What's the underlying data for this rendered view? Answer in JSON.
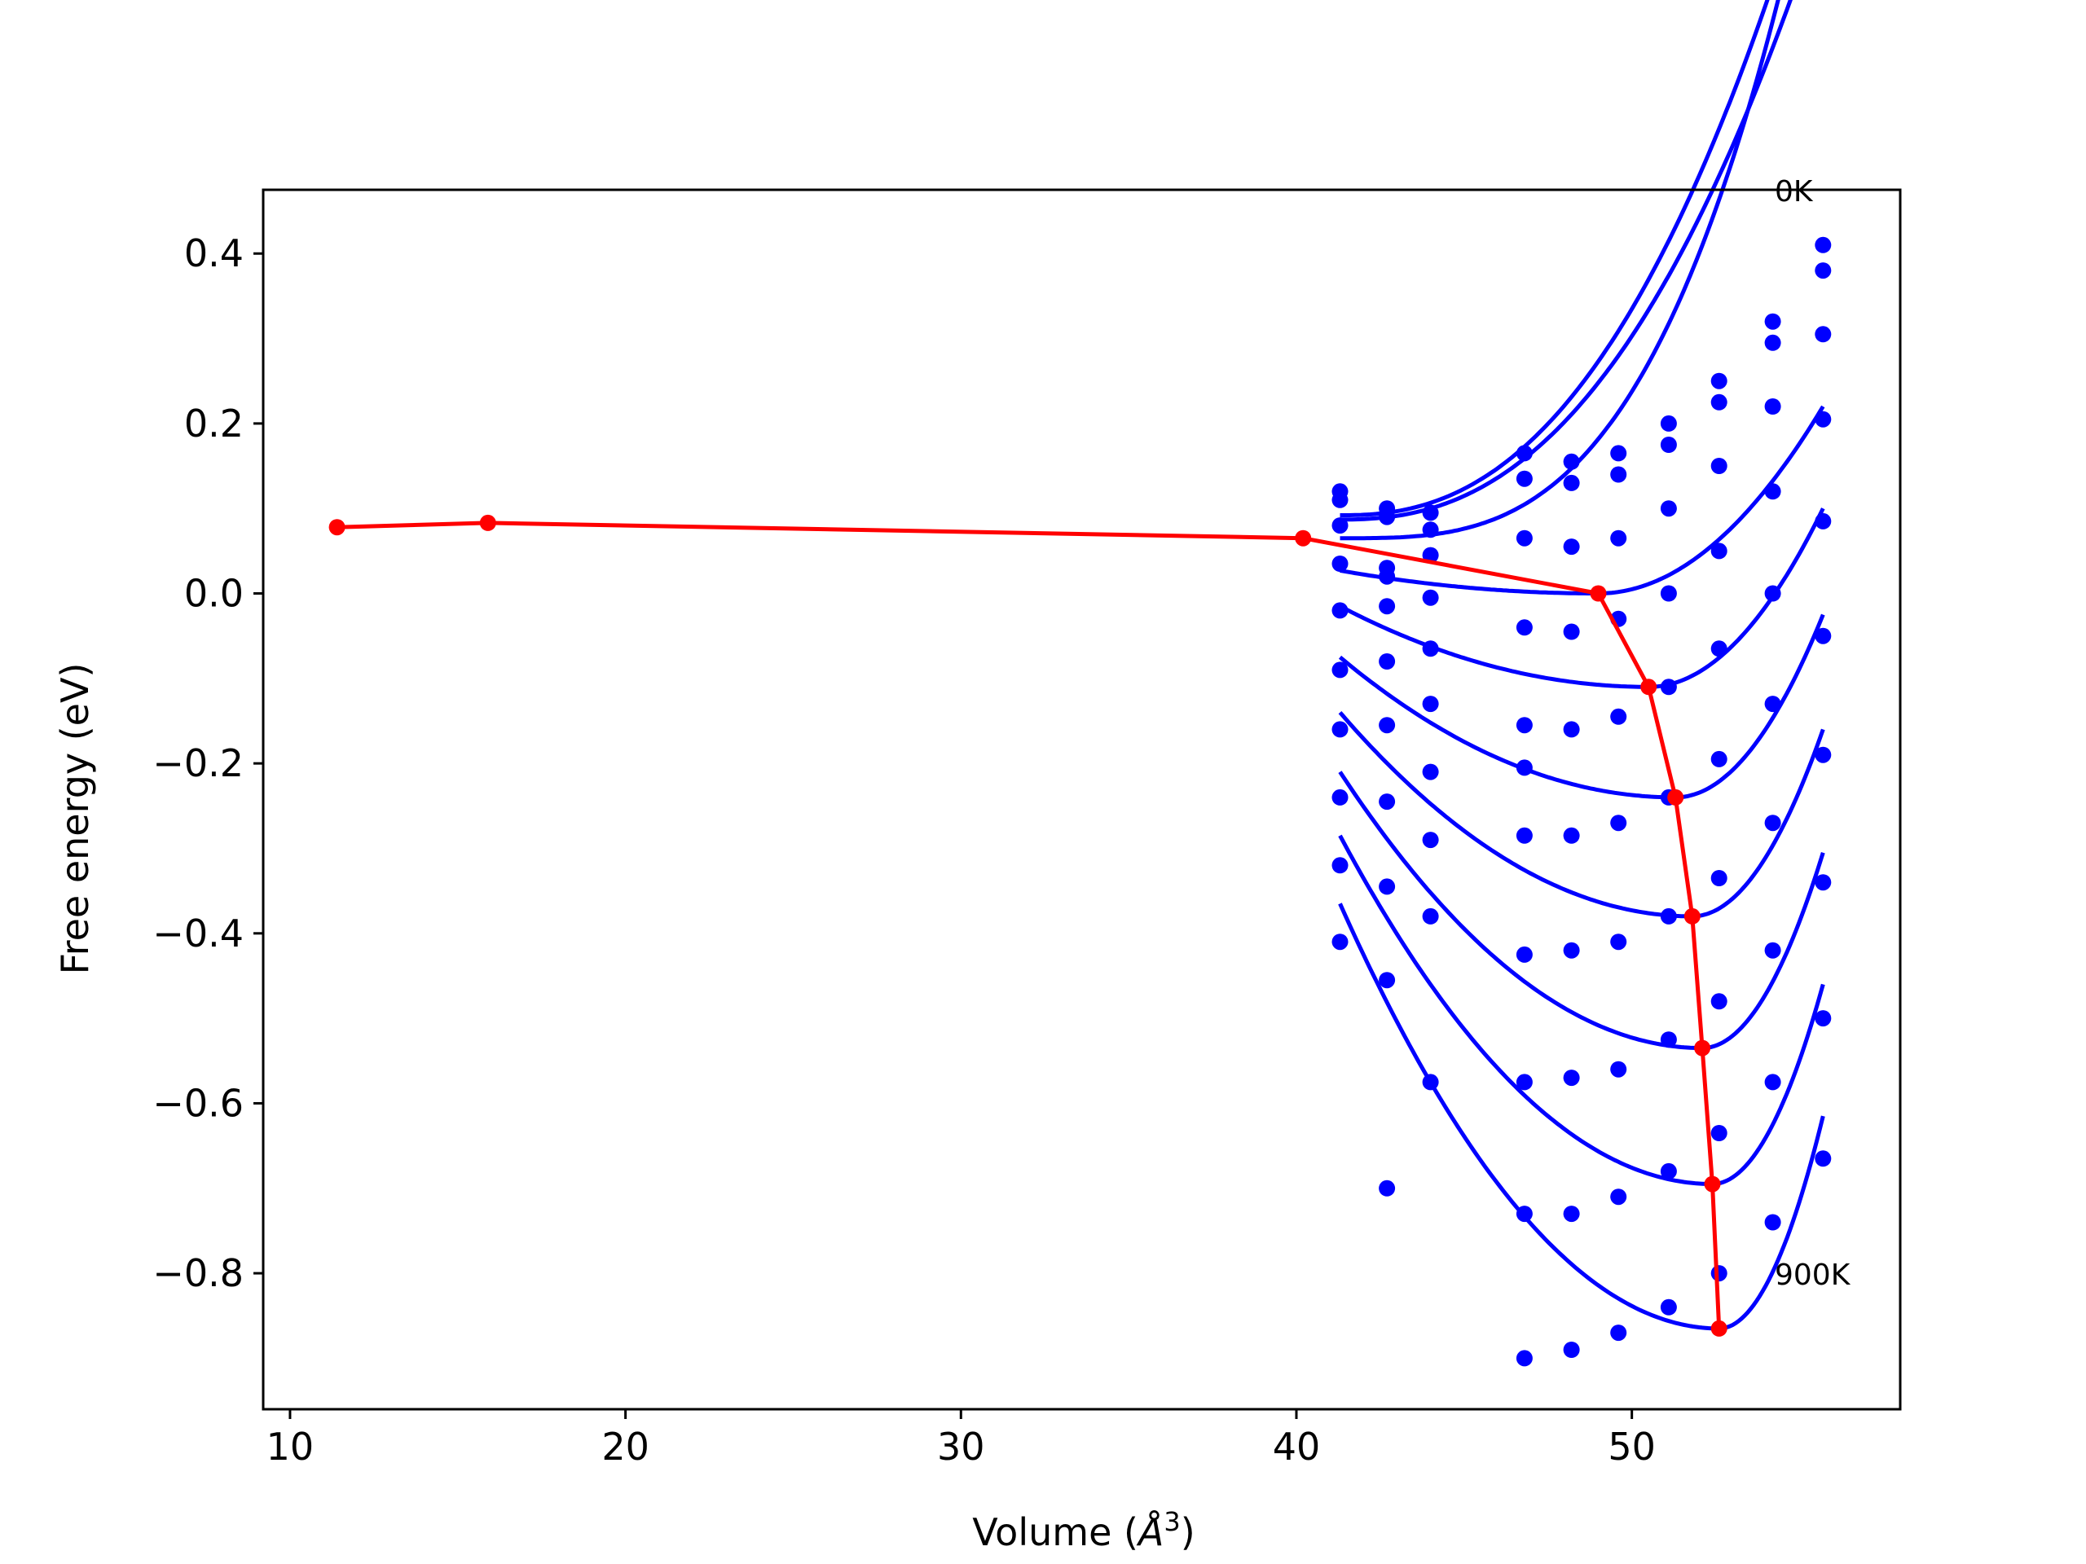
{
  "chart_data": {
    "type": "scatter",
    "title": "",
    "xlabel_prefix": "Volume (",
    "xlabel_unit": "Å",
    "xlabel_sup": "3",
    "xlabel_suffix": ")",
    "ylabel": "Free energy (eV)",
    "xlim": [
      9.2,
      58.0
    ],
    "ylim": [
      -0.96,
      0.475
    ],
    "x_ticks": [
      10,
      20,
      30,
      40,
      50
    ],
    "x_tick_labels": [
      "10",
      "20",
      "30",
      "40",
      "50"
    ],
    "y_ticks": [
      0.4,
      0.2,
      0.0,
      -0.2,
      -0.4,
      -0.6,
      -0.8
    ],
    "y_tick_labels": [
      "0.4",
      "0.2",
      "0.0",
      "−0.2",
      "−0.4",
      "−0.6",
      "−0.8"
    ],
    "grid": false,
    "annotations": [
      {
        "text": "0K",
        "x": 54.2,
        "y": 0.46
      },
      {
        "text": "900K",
        "x": 54.2,
        "y": -0.815
      }
    ],
    "colors": {
      "fit_curves": "#0000ff",
      "points": "#0000ff",
      "minimum_path": "#ff0000"
    },
    "x_points": [
      41.3,
      42.7,
      44.0,
      46.8,
      48.2,
      49.6,
      51.1,
      52.6,
      54.2,
      55.7
    ],
    "temperature_series": [
      {
        "values": [
          0.12,
          0.1,
          0.095,
          0.135,
          0.155,
          0.165,
          0.2,
          0.25,
          0.32,
          0.41
        ],
        "fit": {
          "vmin": 41.3,
          "fmin": 0.092,
          "a": 0.00135,
          "p": 2.4
        }
      },
      {
        "values": [
          0.11,
          0.09,
          0.075,
          0.165,
          0.13,
          0.14,
          0.175,
          0.225,
          0.295,
          0.38
        ],
        "fit": {
          "vmin": 41.3,
          "fmin": 0.087,
          "a": 0.0012,
          "p": 2.4
        }
      },
      {
        "values": [
          0.08,
          0.03,
          0.045,
          0.065,
          0.055,
          0.065,
          0.1,
          0.15,
          0.22,
          0.305
        ],
        "fit": {
          "vmin": 41.3,
          "fmin": 0.065,
          "a": 0.00017,
          "p": 3.2
        }
      },
      {
        "values": [
          0.035,
          0.02,
          -0.005,
          -0.04,
          -0.045,
          -0.03,
          0.0,
          0.05,
          0.12,
          0.205
        ]
      },
      {
        "values": [
          -0.02,
          -0.015,
          -0.065,
          -0.155,
          -0.16,
          -0.145,
          -0.11,
          -0.065,
          0.0,
          0.085
        ]
      },
      {
        "values": [
          -0.09,
          -0.08,
          -0.13,
          -0.205,
          -0.285,
          -0.27,
          -0.24,
          -0.195,
          -0.13,
          -0.05
        ]
      },
      {
        "values": [
          -0.16,
          -0.155,
          -0.21,
          -0.285,
          -0.42,
          -0.41,
          -0.38,
          -0.335,
          -0.27,
          -0.19
        ]
      },
      {
        "values": [
          -0.24,
          -0.245,
          -0.29,
          -0.425,
          -0.57,
          -0.56,
          -0.525,
          -0.48,
          -0.42,
          -0.34
        ]
      },
      {
        "values": [
          -0.32,
          -0.345,
          -0.38,
          -0.575,
          -0.73,
          -0.71,
          -0.68,
          -0.635,
          -0.575,
          -0.5
        ]
      },
      {
        "values": [
          -0.41,
          -0.455,
          -0.575,
          -0.73,
          -0.89,
          -0.87,
          -0.84,
          -0.8,
          -0.74,
          -0.665
        ]
      },
      {
        "values": [
          null,
          -0.7,
          null,
          -0.9,
          null,
          null,
          null,
          null,
          null,
          null
        ]
      }
    ],
    "well_curves": [
      {
        "v0": 49.0,
        "f0": 0.0,
        "start": 0.027,
        "end": 0.22
      },
      {
        "v0": 50.5,
        "f0": -0.11,
        "start": -0.015,
        "end": 0.1
      },
      {
        "v0": 51.3,
        "f0": -0.24,
        "start": -0.075,
        "end": -0.025
      },
      {
        "v0": 51.8,
        "f0": -0.38,
        "start": -0.14,
        "end": -0.16
      },
      {
        "v0": 52.1,
        "f0": -0.535,
        "start": -0.21,
        "end": -0.305
      },
      {
        "v0": 52.4,
        "f0": -0.695,
        "start": -0.285,
        "end": -0.46
      },
      {
        "v0": 52.6,
        "f0": -0.865,
        "start": -0.365,
        "end": -0.615
      }
    ],
    "minimum_path": {
      "x": [
        11.4,
        15.9,
        40.2,
        49.0,
        50.5,
        51.3,
        51.8,
        52.1,
        52.4,
        52.6
      ],
      "y": [
        0.078,
        0.083,
        0.065,
        0.0,
        -0.11,
        -0.24,
        -0.38,
        -0.535,
        -0.695,
        -0.865
      ]
    }
  }
}
